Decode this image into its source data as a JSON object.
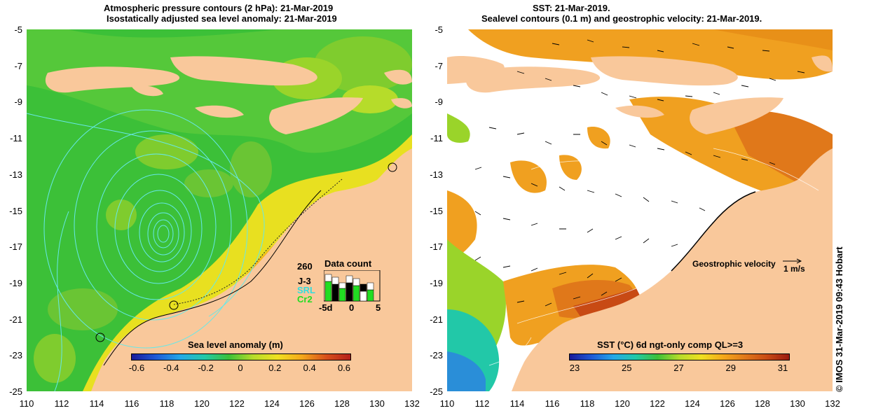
{
  "left_panel": {
    "title_line1": "Atmospheric pressure contours (2 hPa): 21-Mar-2019",
    "title_line2": "Isostatically adjusted sea level anomaly: 21-Mar-2019",
    "colorbar": {
      "label": "Sea level anomaly (m)",
      "ticks": [
        "-0.6",
        "-0.4",
        "-0.2",
        "0",
        "0.2",
        "0.4",
        "0.6"
      ]
    },
    "data_count": {
      "title": "Data count",
      "count": "260",
      "missions": [
        {
          "name": "J-3",
          "color": "#000000"
        },
        {
          "name": "SRL",
          "color": "#33dddd"
        },
        {
          "name": "Cr2",
          "color": "#22dd22"
        }
      ],
      "axis_ticks": [
        "-5d",
        "0",
        "5"
      ]
    }
  },
  "right_panel": {
    "title_line1": "SST: 21-Mar-2019.",
    "title_line2": "Sealevel contours (0.1 m) and geostrophic velocity: 21-Mar-2019.",
    "colorbar": {
      "label": "SST (°C) 6d ngt-only comp QL>=3",
      "ticks": [
        "23",
        "25",
        "27",
        "29",
        "31"
      ]
    },
    "velocity_legend": {
      "label": "Geostrophic velocity",
      "scale": "1 m/s"
    }
  },
  "axes": {
    "lat_ticks": [
      "-5",
      "-7",
      "-9",
      "-11",
      "-13",
      "-15",
      "-17",
      "-19",
      "-21",
      "-23",
      "-25"
    ],
    "lon_ticks": [
      "110",
      "112",
      "114",
      "116",
      "118",
      "120",
      "122",
      "124",
      "126",
      "128",
      "130",
      "132"
    ]
  },
  "credit": "© IMOS 31-Mar-2019 09:43 Hobart",
  "colors": {
    "land": "#f9c89b",
    "sla_green": "#3cc038",
    "warm_sst": "#f09a1a",
    "sst_hot": "#c84a14"
  }
}
